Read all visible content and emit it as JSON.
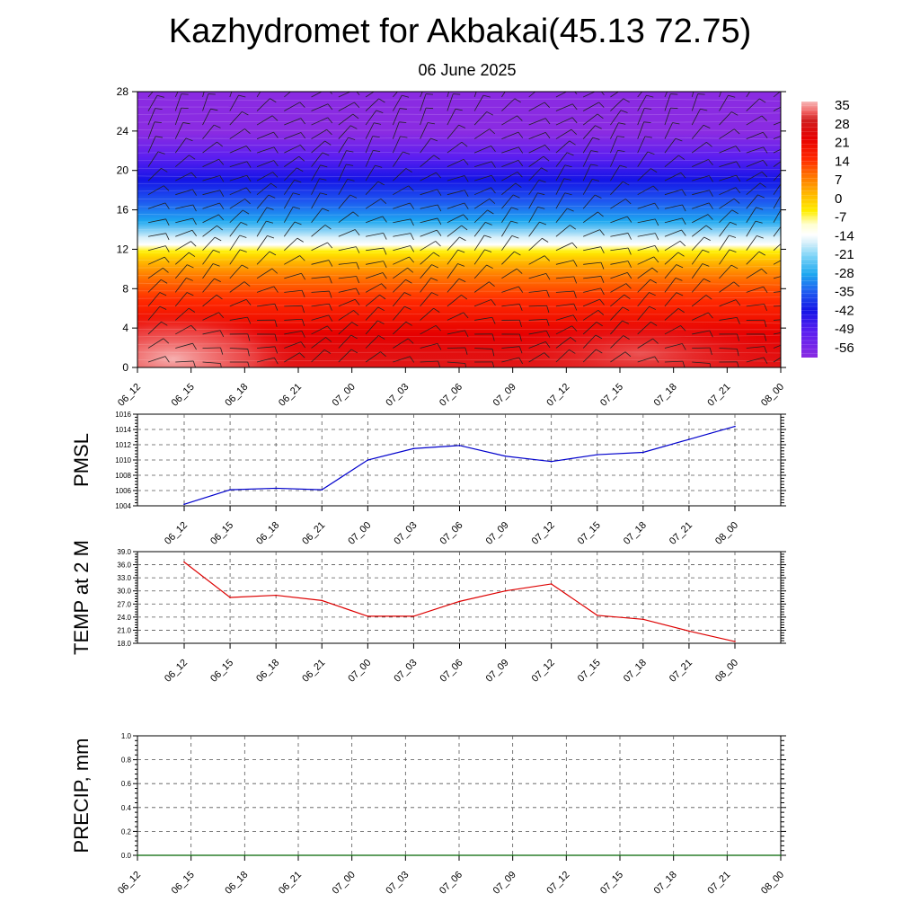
{
  "header": {
    "title": "Kazhydromet for Akbakai(45.13 72.75)",
    "subtitle": "06 June 2025"
  },
  "chart_data": [
    {
      "type": "heatmap",
      "name": "temperature-wind-cross-section",
      "x_labels": [
        "06_12",
        "06_15",
        "06_18",
        "06_21",
        "07_00",
        "07_03",
        "07_06",
        "07_09",
        "07_12",
        "07_15",
        "07_18",
        "07_21",
        "08_00"
      ],
      "y_ticks": [
        0,
        4,
        8,
        12,
        16,
        20,
        24,
        28
      ],
      "ylim": [
        0,
        28
      ],
      "colorbar_labels": [
        "35",
        "28",
        "21",
        "14",
        "7",
        "0",
        "-7",
        "-14",
        "-21",
        "-28",
        "-35",
        "-42",
        "-49",
        "-56"
      ],
      "colorbar_range": [
        -60,
        38
      ],
      "profile_levels": [
        0,
        4,
        8,
        12,
        16,
        20,
        24,
        28
      ],
      "profile_values": [
        33,
        24,
        16,
        -2,
        -30,
        -55,
        -58,
        -55
      ],
      "wind_barbs": "on",
      "colors": {
        "warm_max": "#f7b8b8",
        "red": "#e60000",
        "orange": "#ff8c00",
        "yellow": "#ffe600",
        "white": "#ffffff",
        "cyan": "#1ea8f0",
        "blue": "#1414e6",
        "purple": "#8a2be2"
      }
    },
    {
      "type": "line",
      "name": "pmsl",
      "ylabel": "PMSL",
      "x_labels": [
        "06_12",
        "06_15",
        "06_18",
        "06_21",
        "07_00",
        "07_03",
        "07_06",
        "07_09",
        "07_12",
        "07_15",
        "07_18",
        "07_21",
        "08_00"
      ],
      "values": [
        1004.2,
        1006.1,
        1006.3,
        1006.1,
        1010.0,
        1011.5,
        1011.9,
        1010.5,
        1009.8,
        1010.7,
        1011.0,
        1012.7,
        1014.4
      ],
      "y_ticks": [
        "1004",
        "1006",
        "1008",
        "1010",
        "1012",
        "1014",
        "1016"
      ],
      "ylim": [
        1004,
        1016
      ],
      "color": "#0000cc",
      "grid": "on"
    },
    {
      "type": "line",
      "name": "temp-2m",
      "ylabel": "TEMP at 2 M",
      "x_labels": [
        "06_12",
        "06_15",
        "06_18",
        "06_21",
        "07_00",
        "07_03",
        "07_06",
        "07_09",
        "07_12",
        "07_15",
        "07_18",
        "07_21",
        "08_00"
      ],
      "values": [
        36.6,
        28.5,
        29.0,
        27.8,
        24.2,
        24.2,
        27.6,
        30.0,
        31.6,
        24.4,
        23.5,
        20.8,
        18.4
      ],
      "y_ticks": [
        "18.0",
        "21.0",
        "24.0",
        "27.0",
        "30.0",
        "33.0",
        "36.0",
        "39.0"
      ],
      "ylim": [
        18,
        39
      ],
      "color": "#dd0000",
      "grid": "on"
    },
    {
      "type": "line",
      "name": "precip",
      "ylabel": "PRECIP, mm",
      "x_labels": [
        "06_12",
        "06_15",
        "06_18",
        "06_21",
        "07_00",
        "07_03",
        "07_06",
        "07_09",
        "07_12",
        "07_15",
        "07_18",
        "07_21",
        "08_00"
      ],
      "values": [
        0,
        0,
        0,
        0,
        0,
        0,
        0,
        0,
        0,
        0,
        0,
        0,
        0
      ],
      "y_ticks": [
        "0.0",
        "0.2",
        "0.4",
        "0.6",
        "0.8",
        "1.0"
      ],
      "ylim": [
        0,
        1
      ],
      "color": "#006400",
      "grid": "on"
    }
  ]
}
